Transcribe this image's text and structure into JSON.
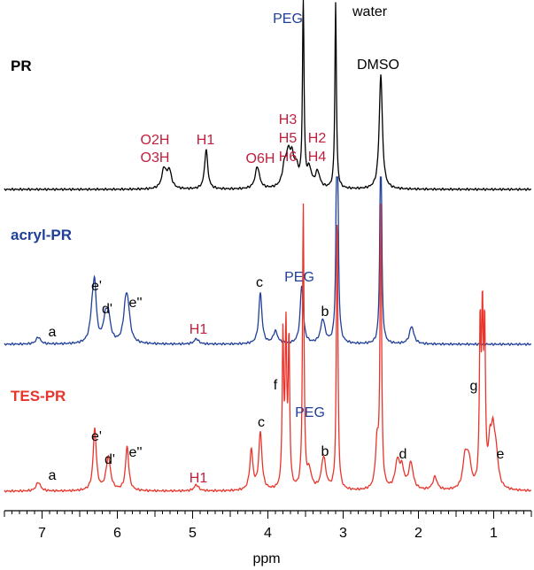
{
  "chart_data": {
    "type": "line",
    "title": "",
    "xlabel": "ppm",
    "ylabel": "",
    "xlim": [
      7.5,
      0.5
    ],
    "x_reversed": true,
    "x_ticks": [
      "7",
      "6",
      "5",
      "4",
      "3",
      "2",
      "1"
    ],
    "grid": false,
    "colors": {
      "PR": "#000000",
      "acryl-PR": "#1f3f99",
      "TES-PR": "#e8352c"
    },
    "series": [
      {
        "name": "PR",
        "peaks": [
          {
            "ppm": 5.38,
            "height": 22
          },
          {
            "ppm": 5.31,
            "height": 20
          },
          {
            "ppm": 4.82,
            "height": 45
          },
          {
            "ppm": 4.14,
            "height": 25
          },
          {
            "ppm": 3.78,
            "height": 20
          },
          {
            "ppm": 3.73,
            "height": 30
          },
          {
            "ppm": 3.68,
            "height": 28
          },
          {
            "ppm": 3.62,
            "height": 18
          },
          {
            "ppm": 3.53,
            "height": 215
          },
          {
            "ppm": 3.45,
            "height": 20
          },
          {
            "ppm": 3.34,
            "height": 18
          },
          {
            "ppm": 3.1,
            "height": 210
          },
          {
            "ppm": 2.5,
            "height": 130
          }
        ],
        "annotations": [
          {
            "text": "O2H",
            "ppm": 5.36
          },
          {
            "text": "O3H",
            "ppm": 5.36
          },
          {
            "text": "H1",
            "ppm": 4.85
          },
          {
            "text": "O6H",
            "ppm": 4.14
          },
          {
            "text": "H3",
            "ppm": 3.78
          },
          {
            "text": "H5",
            "ppm": 3.78
          },
          {
            "text": "H6",
            "ppm": 3.78
          },
          {
            "text": "H2",
            "ppm": 3.4
          },
          {
            "text": "H4",
            "ppm": 3.4
          },
          {
            "text": "PEG",
            "ppm": 3.7
          },
          {
            "text": "water",
            "ppm": 2.88
          },
          {
            "text": "DMSO",
            "ppm": 2.5
          }
        ]
      },
      {
        "name": "acryl-PR",
        "peaks": [
          {
            "ppm": 7.05,
            "height": 8
          },
          {
            "ppm": 6.33,
            "height": 35
          },
          {
            "ppm": 6.3,
            "height": 52
          },
          {
            "ppm": 6.16,
            "height": 22
          },
          {
            "ppm": 6.12,
            "height": 28
          },
          {
            "ppm": 5.89,
            "height": 35
          },
          {
            "ppm": 5.86,
            "height": 32
          },
          {
            "ppm": 4.95,
            "height": 6
          },
          {
            "ppm": 4.1,
            "height": 58
          },
          {
            "ppm": 3.9,
            "height": 14
          },
          {
            "ppm": 3.55,
            "height": 66
          },
          {
            "ppm": 3.27,
            "height": 27
          },
          {
            "ppm": 3.08,
            "height": 390
          },
          {
            "ppm": 2.5,
            "height": 300
          },
          {
            "ppm": 2.09,
            "height": 20
          }
        ],
        "annotations": [
          {
            "text": "a",
            "ppm": 6.82
          },
          {
            "text": "e'",
            "ppm": 6.36
          },
          {
            "text": "d'",
            "ppm": 6.15
          },
          {
            "text": "e''",
            "ppm": 5.88
          },
          {
            "text": "H1",
            "ppm": 4.95
          },
          {
            "text": "c",
            "ppm": 4.1
          },
          {
            "text": "PEG",
            "ppm": 3.58
          },
          {
            "text": "b",
            "ppm": 3.25
          }
        ]
      },
      {
        "name": "TES-PR",
        "peaks": [
          {
            "ppm": 7.05,
            "height": 10
          },
          {
            "ppm": 6.3,
            "height": 70
          },
          {
            "ppm": 6.12,
            "height": 38
          },
          {
            "ppm": 5.87,
            "height": 50
          },
          {
            "ppm": 4.95,
            "height": 7
          },
          {
            "ppm": 4.22,
            "height": 45
          },
          {
            "ppm": 4.1,
            "height": 65
          },
          {
            "ppm": 3.8,
            "height": 170
          },
          {
            "ppm": 3.76,
            "height": 175
          },
          {
            "ppm": 3.72,
            "height": 165
          },
          {
            "ppm": 3.53,
            "height": 320
          },
          {
            "ppm": 3.45,
            "height": 20
          },
          {
            "ppm": 3.26,
            "height": 37
          },
          {
            "ppm": 3.08,
            "height": 310
          },
          {
            "ppm": 2.55,
            "height": 50
          },
          {
            "ppm": 2.5,
            "height": 320
          },
          {
            "ppm": 2.28,
            "height": 30
          },
          {
            "ppm": 2.22,
            "height": 22
          },
          {
            "ppm": 2.1,
            "height": 30
          },
          {
            "ppm": 1.78,
            "height": 15
          },
          {
            "ppm": 1.38,
            "height": 35
          },
          {
            "ppm": 1.33,
            "height": 30
          },
          {
            "ppm": 1.18,
            "height": 175
          },
          {
            "ppm": 1.15,
            "height": 180
          },
          {
            "ppm": 1.12,
            "height": 170
          },
          {
            "ppm": 1.05,
            "height": 45
          },
          {
            "ppm": 1.01,
            "height": 50
          },
          {
            "ppm": 0.97,
            "height": 38
          }
        ],
        "annotations": [
          {
            "text": "a",
            "ppm": 6.82
          },
          {
            "text": "e'",
            "ppm": 6.36
          },
          {
            "text": "d'",
            "ppm": 6.15
          },
          {
            "text": "e''",
            "ppm": 5.88
          },
          {
            "text": "H1",
            "ppm": 4.95
          },
          {
            "text": "c",
            "ppm": 4.1
          },
          {
            "text": "f",
            "ppm": 3.88
          },
          {
            "text": "PEG",
            "ppm": 3.52
          },
          {
            "text": "b",
            "ppm": 3.25
          },
          {
            "text": "d",
            "ppm": 2.3
          },
          {
            "text": "g",
            "ppm": 1.25
          },
          {
            "text": "e",
            "ppm": 0.92
          }
        ]
      }
    ]
  }
}
